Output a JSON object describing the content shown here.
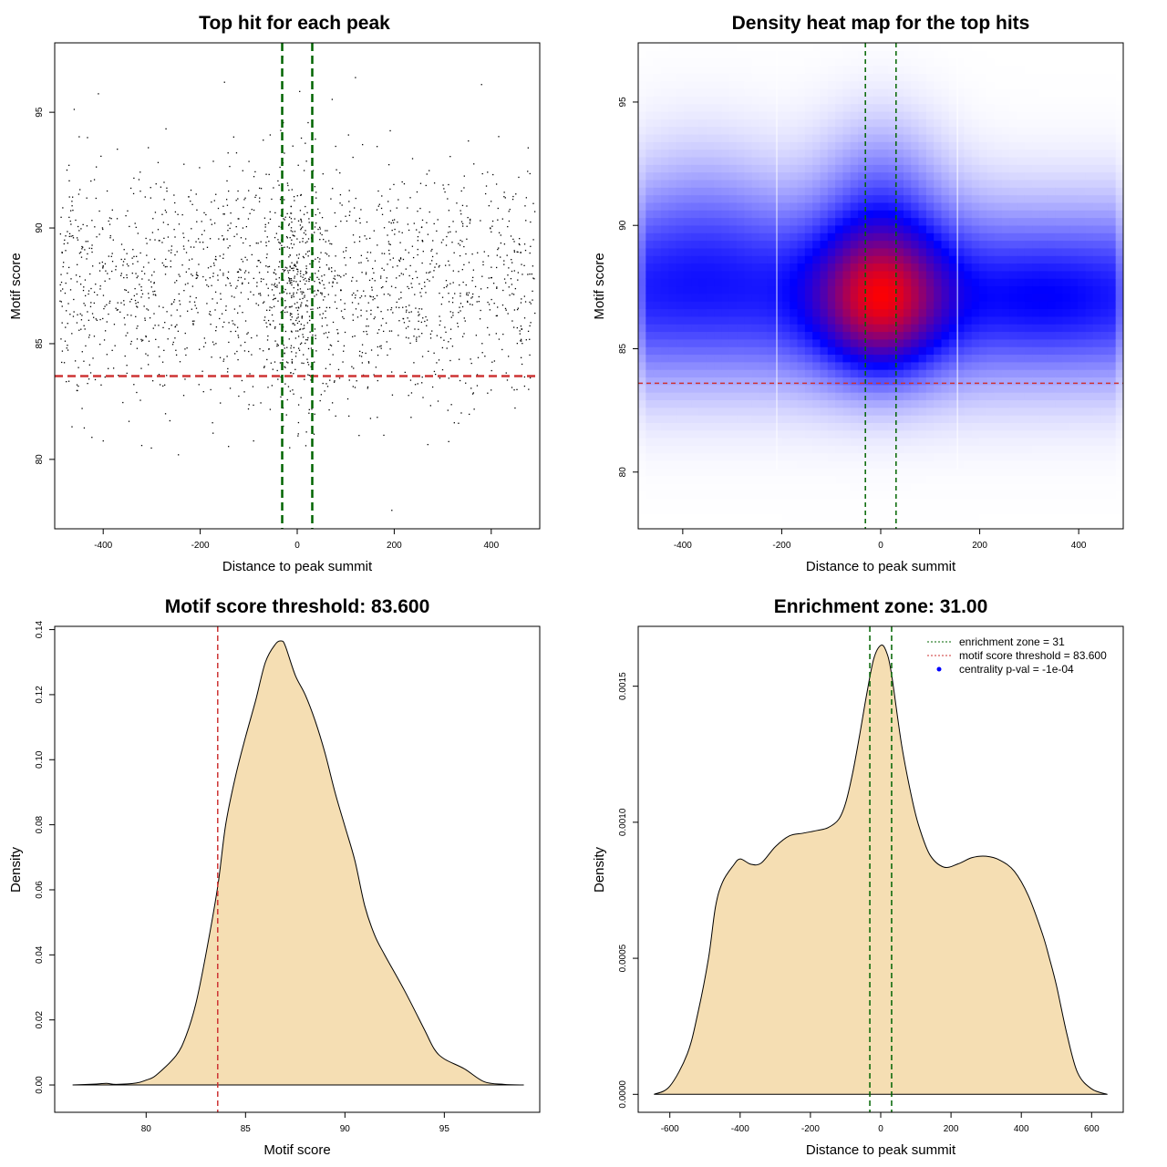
{
  "colors": {
    "threshold": "#cd3333",
    "zone": "#006400",
    "fill": "#f5deb3",
    "heat_low": "#ffffff",
    "heat_mid": "#0000ff",
    "heat_high": "#ff0000",
    "pval_marker": "#0000ff"
  },
  "chart_data": [
    {
      "type": "scatter",
      "title": "Top hit for each peak",
      "xlabel": "Distance to peak summit",
      "ylabel": "Motif score",
      "xlim": [
        -500,
        500
      ],
      "ylim": [
        77,
        98
      ],
      "xticks": [
        -400,
        -200,
        0,
        200,
        400
      ],
      "yticks": [
        80,
        85,
        90,
        95
      ],
      "threshold": 83.6,
      "zone": [
        -31,
        31
      ],
      "point_count": 2000,
      "points_sample": [
        [
          -30,
          97.4
        ],
        [
          -150,
          96.3
        ],
        [
          120,
          96.5
        ],
        [
          195,
          77.8
        ],
        [
          -400,
          80.8
        ],
        [
          -245,
          80.2
        ],
        [
          -90,
          80.8
        ],
        [
          -410,
          95.8
        ],
        [
          380,
          96.2
        ],
        [
          5,
          95.9
        ]
      ],
      "distribution": "uniform over x in [-490, 490], scores concentrated 83-92 with mode ~87, denser near 0"
    },
    {
      "type": "heatmap",
      "title": "Density heat map for the top hits",
      "xlabel": "Distance to peak summit",
      "ylabel": "Motif score",
      "xlim": [
        -490,
        490
      ],
      "ylim": [
        77.7,
        97.4
      ],
      "xticks": [
        -400,
        -200,
        0,
        200,
        400
      ],
      "yticks": [
        80,
        85,
        90,
        95
      ],
      "threshold": 83.6,
      "zone": [
        -31,
        31
      ],
      "density_peaks": [
        {
          "x": 0,
          "y": 87,
          "intensity": 1.0
        },
        {
          "x": -350,
          "y": 87,
          "intensity": 0.5
        },
        {
          "x": 330,
          "y": 87,
          "intensity": 0.48
        },
        {
          "x": 0,
          "y": 91,
          "intensity": 0.55
        }
      ]
    },
    {
      "type": "area",
      "title": "Motif score threshold: 83.600",
      "xlabel": "Motif score",
      "ylabel": "Density",
      "xlim": [
        75.4,
        99.8
      ],
      "ylim": [
        -0.0084,
        0.141
      ],
      "xticks": [
        80,
        85,
        90,
        95
      ],
      "yticks": [
        0.0,
        0.02,
        0.04,
        0.06,
        0.08,
        0.1,
        0.12,
        0.14
      ],
      "ytick_labels": [
        "0.00",
        "0.02",
        "0.04",
        "0.06",
        "0.08",
        "0.10",
        "0.12",
        "0.14"
      ],
      "threshold": 83.6,
      "x": [
        76.3,
        77.5,
        78.0,
        78.5,
        79.5,
        80.0,
        80.5,
        81.5,
        82.0,
        82.5,
        83.0,
        83.6,
        84.0,
        84.5,
        85.0,
        85.5,
        86.0,
        86.5,
        86.8,
        87.0,
        87.5,
        88.0,
        88.5,
        89.0,
        89.5,
        90.0,
        90.5,
        91.0,
        91.5,
        92.0,
        93.0,
        94.0,
        94.5,
        95.0,
        96.0,
        97.0,
        98.0,
        99.0
      ],
      "values": [
        0.0,
        0.0003,
        0.0005,
        0.0002,
        0.0006,
        0.0015,
        0.003,
        0.009,
        0.015,
        0.025,
        0.04,
        0.061,
        0.08,
        0.095,
        0.107,
        0.118,
        0.13,
        0.1355,
        0.1365,
        0.135,
        0.126,
        0.12,
        0.112,
        0.102,
        0.09,
        0.0795,
        0.069,
        0.055,
        0.046,
        0.04,
        0.029,
        0.017,
        0.011,
        0.008,
        0.005,
        0.001,
        0.0002,
        0.0
      ]
    },
    {
      "type": "area",
      "title": "Enrichment zone: 31.00",
      "xlabel": "Distance to peak summit",
      "ylabel": "Density",
      "xlim": [
        -690,
        690
      ],
      "ylim": [
        -6.6e-05,
        0.00172
      ],
      "xticks": [
        -600,
        -400,
        -200,
        0,
        200,
        400,
        600
      ],
      "yticks": [
        0.0,
        0.0005,
        0.001,
        0.0015
      ],
      "ytick_labels": [
        "0.0000",
        "0.0005",
        "0.0010",
        "0.0015"
      ],
      "zone": [
        -31,
        31
      ],
      "x": [
        -645,
        -600,
        -550,
        -520,
        -490,
        -470,
        -450,
        -420,
        -400,
        -370,
        -340,
        -300,
        -260,
        -220,
        -180,
        -150,
        -120,
        -100,
        -80,
        -60,
        -40,
        -20,
        0,
        15,
        30,
        60,
        90,
        110,
        140,
        180,
        220,
        260,
        300,
        340,
        380,
        420,
        460,
        480,
        500,
        530,
        560,
        600,
        645
      ],
      "values": [
        0.0,
        3e-05,
        0.00015,
        0.0003,
        0.0005,
        0.00069,
        0.00078,
        0.00084,
        0.000865,
        0.000846,
        0.00085,
        0.00091,
        0.00095,
        0.00096,
        0.00097,
        0.00098,
        0.00101,
        0.00107,
        0.00118,
        0.00132,
        0.00147,
        0.0016,
        0.00165,
        0.00163,
        0.00155,
        0.00128,
        0.00108,
        0.00098,
        0.00088,
        0.000835,
        0.000847,
        0.00087,
        0.000875,
        0.00086,
        0.00082,
        0.00073,
        0.00059,
        0.0005,
        0.0004,
        0.00022,
        8e-05,
        2e-05,
        0.0
      ]
    }
  ],
  "legend": {
    "items": [
      {
        "label": "enrichment zone = 31",
        "style": "dotted-line",
        "color": "#006400"
      },
      {
        "label": "motif score threshold = 83.600",
        "style": "dotted-line",
        "color": "#cd3333"
      },
      {
        "label": "centrality p-val = -1e-04",
        "style": "point",
        "color": "#0000ff"
      }
    ]
  }
}
